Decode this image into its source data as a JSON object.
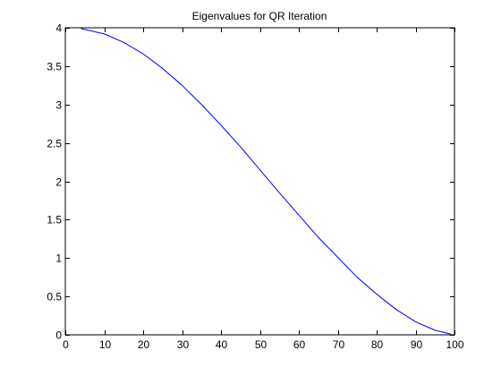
{
  "chart_data": {
    "type": "line",
    "title": "Eigenvalues for QR Iteration",
    "xlabel": "",
    "ylabel": "",
    "xlim": [
      0,
      100
    ],
    "ylim": [
      0,
      4
    ],
    "x_ticks": [
      0,
      10,
      20,
      30,
      40,
      50,
      60,
      70,
      80,
      90,
      100
    ],
    "y_ticks": [
      0,
      0.5,
      1,
      1.5,
      2,
      2.5,
      3,
      3.5,
      4
    ],
    "grid": false,
    "series": [
      {
        "color": "#0000ff",
        "x": [
          4,
          10,
          15,
          20,
          25,
          30,
          35,
          40,
          45,
          50,
          55,
          60,
          65,
          70,
          75,
          80,
          85,
          90,
          95,
          99
        ],
        "y": [
          3.99,
          3.92,
          3.81,
          3.66,
          3.47,
          3.25,
          3.0,
          2.73,
          2.45,
          2.15,
          1.85,
          1.56,
          1.27,
          1.01,
          0.75,
          0.53,
          0.33,
          0.17,
          0.06,
          0.01
        ]
      }
    ]
  }
}
